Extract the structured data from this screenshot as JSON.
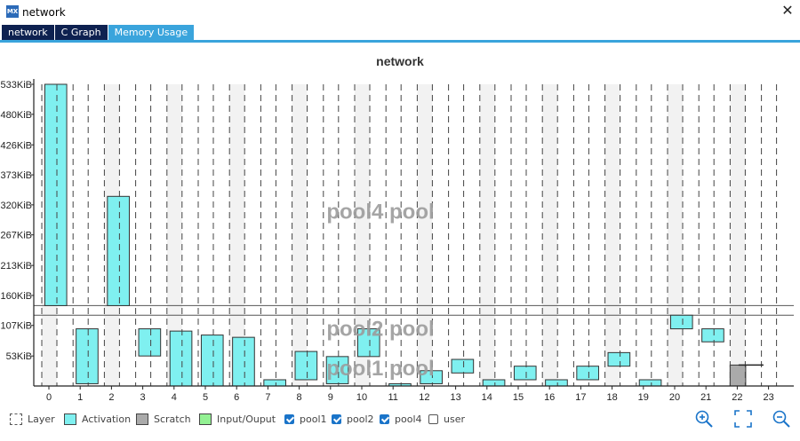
{
  "window": {
    "title": "network",
    "logo_text": "MX"
  },
  "tabs": [
    {
      "label": "network",
      "active": false
    },
    {
      "label": "C Graph",
      "active": false
    },
    {
      "label": "Memory Usage",
      "active": true
    }
  ],
  "legend": {
    "layer": "Layer",
    "activation": "Activation",
    "scratch": "Scratch",
    "io": "Input/Ouput",
    "pool1": {
      "label": "pool1",
      "checked": true
    },
    "pool2": {
      "label": "pool2",
      "checked": true
    },
    "pool4": {
      "label": "pool4",
      "checked": true
    },
    "user": {
      "label": "user",
      "checked": false
    }
  },
  "toolbar": {
    "zoom_in": "zoom-in-icon",
    "fit": "fit-screen-icon",
    "zoom_out": "zoom-out-icon"
  },
  "colors": {
    "activation": "#7ff0f0",
    "scratch": "#aaaaaa",
    "io": "#93f193",
    "tab_active": "#3aa4dc",
    "tab_inactive": "#0e2150"
  },
  "chart_data": {
    "type": "bar",
    "title": "network",
    "unit": "KiB",
    "x_ticks": [
      "0",
      "1",
      "2",
      "3",
      "4",
      "5",
      "6",
      "7",
      "8",
      "9",
      "10",
      "11",
      "12",
      "13",
      "14",
      "15",
      "16",
      "17",
      "18",
      "19",
      "20",
      "21",
      "22",
      "23"
    ],
    "y_ticks": [
      "53KiB",
      "107KiB",
      "160KiB",
      "213KiB",
      "267KiB",
      "320KiB",
      "373KiB",
      "426KiB",
      "480KiB",
      "533KiB"
    ],
    "ylim": [
      0,
      533
    ],
    "pool_boundaries": [
      125,
      142
    ],
    "pool_labels": [
      {
        "text": "pool4 pool",
        "y": 310
      },
      {
        "text": "pool2 pool",
        "y": 103
      },
      {
        "text": "pool1 pool",
        "y": 33
      }
    ],
    "blocks": [
      {
        "kind": "activation",
        "x0": 0.2,
        "x1": 0.9,
        "y0": 142,
        "y1": 533
      },
      {
        "kind": "activation",
        "x0": 1.2,
        "x1": 1.9,
        "y0": 4,
        "y1": 101
      },
      {
        "kind": "activation",
        "x0": 2.2,
        "x1": 2.9,
        "y0": 142,
        "y1": 335
      },
      {
        "kind": "activation",
        "x0": 3.2,
        "x1": 3.9,
        "y0": 53,
        "y1": 101
      },
      {
        "kind": "activation",
        "x0": 4.2,
        "x1": 4.9,
        "y0": 0,
        "y1": 97
      },
      {
        "kind": "activation",
        "x0": 5.2,
        "x1": 5.9,
        "y0": 0,
        "y1": 90
      },
      {
        "kind": "activation",
        "x0": 6.2,
        "x1": 6.9,
        "y0": 0,
        "y1": 86
      },
      {
        "kind": "activation",
        "x0": 7.2,
        "x1": 7.9,
        "y0": 0,
        "y1": 11
      },
      {
        "kind": "activation",
        "x0": 8.2,
        "x1": 8.9,
        "y0": 11,
        "y1": 61
      },
      {
        "kind": "activation",
        "x0": 9.2,
        "x1": 9.9,
        "y0": 4,
        "y1": 52
      },
      {
        "kind": "activation",
        "x0": 10.2,
        "x1": 10.9,
        "y0": 52,
        "y1": 101
      },
      {
        "kind": "activation",
        "x0": 11.2,
        "x1": 11.9,
        "y0": 0,
        "y1": 4
      },
      {
        "kind": "activation",
        "x0": 12.2,
        "x1": 12.9,
        "y0": 4,
        "y1": 27
      },
      {
        "kind": "activation",
        "x0": 13.2,
        "x1": 13.9,
        "y0": 23,
        "y1": 47
      },
      {
        "kind": "activation",
        "x0": 14.2,
        "x1": 14.9,
        "y0": 0,
        "y1": 11
      },
      {
        "kind": "activation",
        "x0": 15.2,
        "x1": 15.9,
        "y0": 11,
        "y1": 35
      },
      {
        "kind": "activation",
        "x0": 16.2,
        "x1": 16.9,
        "y0": 0,
        "y1": 11
      },
      {
        "kind": "activation",
        "x0": 17.2,
        "x1": 17.9,
        "y0": 11,
        "y1": 35
      },
      {
        "kind": "activation",
        "x0": 18.2,
        "x1": 18.9,
        "y0": 35,
        "y1": 59
      },
      {
        "kind": "activation",
        "x0": 19.2,
        "x1": 19.9,
        "y0": 0,
        "y1": 11
      },
      {
        "kind": "activation",
        "x0": 20.2,
        "x1": 20.9,
        "y0": 101,
        "y1": 125
      },
      {
        "kind": "activation",
        "x0": 21.2,
        "x1": 21.9,
        "y0": 78,
        "y1": 101
      },
      {
        "kind": "scratch",
        "x0": 22.1,
        "x1": 22.6,
        "y0": 0,
        "y1": 37
      }
    ]
  }
}
